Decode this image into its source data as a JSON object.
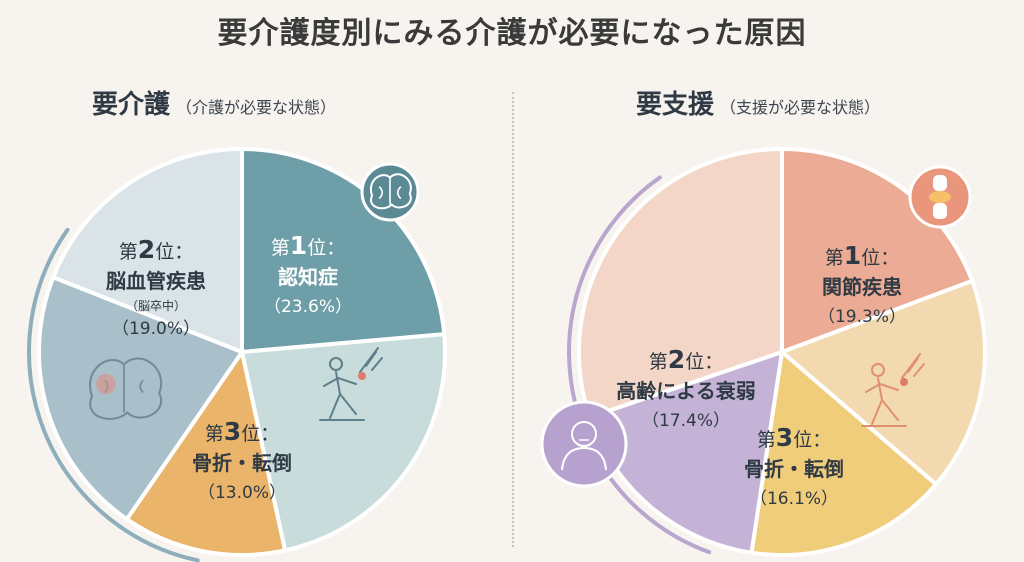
{
  "title": "要介護度別にみる介護が必要になった原因",
  "chart_data": [
    {
      "type": "pie",
      "title": "要介護",
      "subtitle": "（介護が必要な状態）",
      "slices": [
        {
          "rank": "1",
          "label": "認知症",
          "value": 23.6,
          "value_text": "（23.6%）",
          "color": "#6e9ea7",
          "icon": "brain-icon"
        },
        {
          "rank": null,
          "label": "",
          "value": 23.0,
          "value_text": "",
          "color": "#c8dcdc",
          "icon": "fall-icon"
        },
        {
          "rank": "3",
          "label": "骨折・転倒",
          "value": 13.0,
          "value_text": "（13.0%）",
          "color": "#eab56a",
          "icon": null
        },
        {
          "rank": null,
          "label": "",
          "value": 21.4,
          "value_text": "",
          "color": "#a9bfc9",
          "icon": "brain-icon"
        },
        {
          "rank": "2",
          "label": "脳血管疾患",
          "note": "（脳卒中）",
          "value": 19.0,
          "value_text": "（19.0%）",
          "color": "#dae3e8",
          "icon": null
        }
      ]
    },
    {
      "type": "pie",
      "title": "要支援",
      "subtitle": "（支援が必要な状態）",
      "slices": [
        {
          "rank": "1",
          "label": "関節疾患",
          "value": 19.3,
          "value_text": "（19.3%）",
          "color": "#ecab94",
          "icon": "joint-icon"
        },
        {
          "rank": null,
          "label": "",
          "value": 17.0,
          "value_text": "",
          "color": "#f3d9b0",
          "icon": "fall-icon"
        },
        {
          "rank": "3",
          "label": "骨折・転倒",
          "value": 16.1,
          "value_text": "（16.1%）",
          "color": "#f0cd7a",
          "icon": null
        },
        {
          "rank": "2",
          "label": "高齢による衰弱",
          "value": 17.4,
          "value_text": "（17.4%）",
          "color": "#c4b3d6",
          "icon": "elderly-icon"
        },
        {
          "rank": null,
          "label": "",
          "value": 30.2,
          "value_text": "",
          "color": "#f4d6c8",
          "icon": null
        }
      ]
    }
  ],
  "rank_prefix": "第",
  "rank_suffix": "位：",
  "colors": {
    "care_arc": "#8faebc",
    "support_arc": "#b9a6cf",
    "background": "#f7f4ef"
  }
}
